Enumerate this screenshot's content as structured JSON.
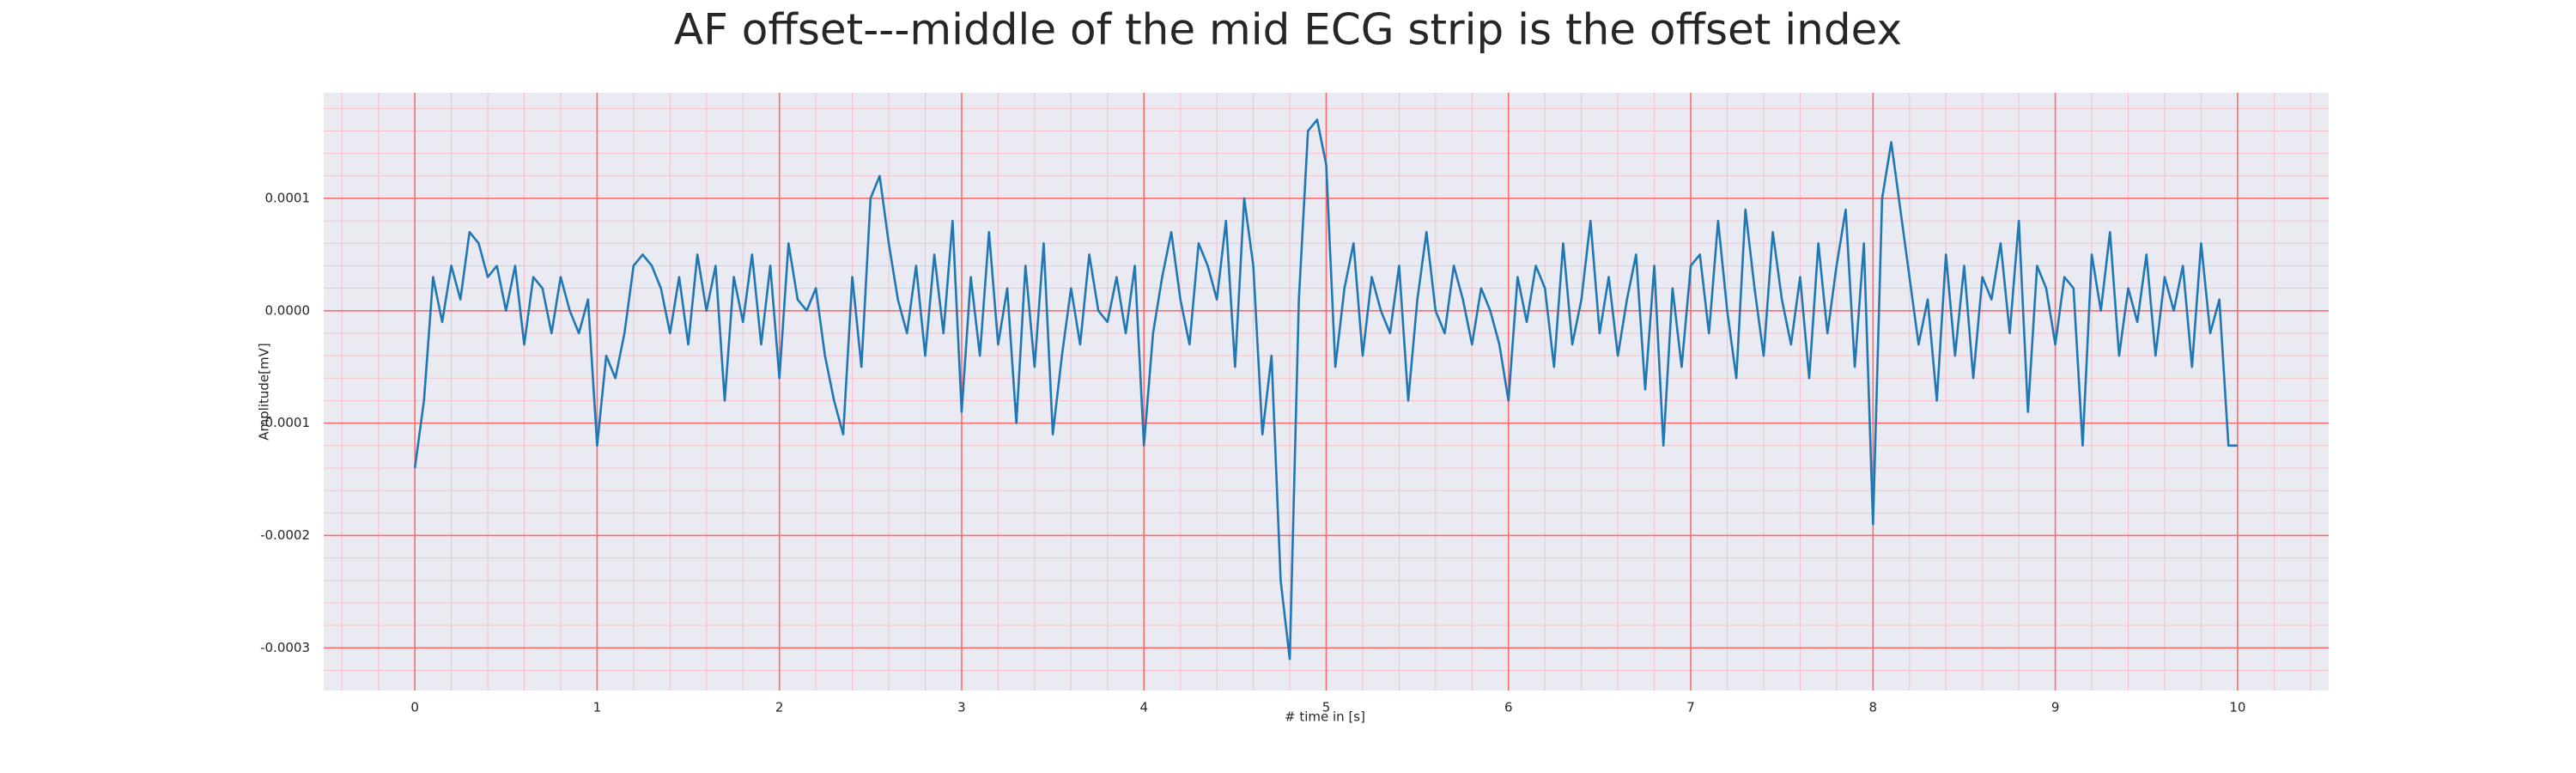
{
  "chart_data": {
    "type": "line",
    "title": "AF offset---middle of the mid ECG strip is the offset index",
    "xlabel": "# time in [s]",
    "ylabel": "Amplitude[mV]",
    "x": [
      0,
      0.05,
      0.1,
      0.15,
      0.2,
      0.25,
      0.3,
      0.35,
      0.4,
      0.45,
      0.5,
      0.55,
      0.6,
      0.65,
      0.7,
      0.75,
      0.8,
      0.85,
      0.9,
      0.95,
      1,
      1.05,
      1.1,
      1.15,
      1.2,
      1.25,
      1.3,
      1.35,
      1.4,
      1.45,
      1.5,
      1.55,
      1.6,
      1.65,
      1.7,
      1.75,
      1.8,
      1.85,
      1.9,
      1.95,
      2,
      2.05,
      2.1,
      2.15,
      2.2,
      2.25,
      2.3,
      2.35,
      2.4,
      2.45,
      2.5,
      2.55,
      2.6,
      2.65,
      2.7,
      2.75,
      2.8,
      2.85,
      2.9,
      2.95,
      3,
      3.05,
      3.1,
      3.15,
      3.2,
      3.25,
      3.3,
      3.35,
      3.4,
      3.45,
      3.5,
      3.55,
      3.6,
      3.65,
      3.7,
      3.75,
      3.8,
      3.85,
      3.9,
      3.95,
      4,
      4.05,
      4.1,
      4.15,
      4.2,
      4.25,
      4.3,
      4.35,
      4.4,
      4.45,
      4.5,
      4.55,
      4.6,
      4.65,
      4.7,
      4.75,
      4.8,
      4.85,
      4.9,
      4.95,
      5,
      5.05,
      5.1,
      5.15,
      5.2,
      5.25,
      5.3,
      5.35,
      5.4,
      5.45,
      5.5,
      5.55,
      5.6,
      5.65,
      5.7,
      5.75,
      5.8,
      5.85,
      5.9,
      5.95,
      6,
      6.05,
      6.1,
      6.15,
      6.2,
      6.25,
      6.3,
      6.35,
      6.4,
      6.45,
      6.5,
      6.55,
      6.6,
      6.65,
      6.7,
      6.75,
      6.8,
      6.85,
      6.9,
      6.95,
      7,
      7.05,
      7.1,
      7.15,
      7.2,
      7.25,
      7.3,
      7.35,
      7.4,
      7.45,
      7.5,
      7.55,
      7.6,
      7.65,
      7.7,
      7.75,
      7.8,
      7.85,
      7.9,
      7.95,
      8,
      8.05,
      8.1,
      8.15,
      8.2,
      8.25,
      8.3,
      8.35,
      8.4,
      8.45,
      8.5,
      8.55,
      8.6,
      8.65,
      8.7,
      8.75,
      8.8,
      8.85,
      8.9,
      8.95,
      9,
      9.05,
      9.1,
      9.15,
      9.2,
      9.25,
      9.3,
      9.35,
      9.4,
      9.45,
      9.5,
      9.55,
      9.6,
      9.65,
      9.7,
      9.75,
      9.8,
      9.85,
      9.9,
      9.95,
      10
    ],
    "series": [
      {
        "color": "#1f77b4",
        "values": [
          -0.00014,
          -8e-05,
          3e-05,
          -1e-05,
          4e-05,
          1e-05,
          7e-05,
          6e-05,
          3e-05,
          4e-05,
          0,
          4e-05,
          -3e-05,
          3e-05,
          2e-05,
          -2e-05,
          3e-05,
          0,
          -2e-05,
          1e-05,
          -0.00012,
          -4e-05,
          -6e-05,
          -2e-05,
          4e-05,
          5e-05,
          4e-05,
          2e-05,
          -2e-05,
          3e-05,
          -3e-05,
          5e-05,
          0,
          4e-05,
          -8e-05,
          3e-05,
          -1e-05,
          5e-05,
          -3e-05,
          4e-05,
          -6e-05,
          6e-05,
          1e-05,
          0,
          2e-05,
          -4e-05,
          -8e-05,
          -0.00011,
          3e-05,
          -5e-05,
          0.0001,
          0.00012,
          6e-05,
          1e-05,
          -2e-05,
          4e-05,
          -4e-05,
          5e-05,
          -2e-05,
          8e-05,
          -9e-05,
          3e-05,
          -4e-05,
          7e-05,
          -3e-05,
          2e-05,
          -0.0001,
          4e-05,
          -5e-05,
          6e-05,
          -0.00011,
          -4e-05,
          2e-05,
          -3e-05,
          5e-05,
          0,
          -1e-05,
          3e-05,
          -2e-05,
          4e-05,
          -0.00012,
          -2e-05,
          3e-05,
          7e-05,
          1e-05,
          -3e-05,
          6e-05,
          4e-05,
          1e-05,
          8e-05,
          -5e-05,
          0.0001,
          4e-05,
          -0.00011,
          -4e-05,
          -0.00024,
          -0.00031,
          1e-05,
          0.00016,
          0.00017,
          0.00013,
          -5e-05,
          2e-05,
          6e-05,
          -4e-05,
          3e-05,
          0,
          -2e-05,
          4e-05,
          -8e-05,
          1e-05,
          7e-05,
          0,
          -2e-05,
          4e-05,
          1e-05,
          -3e-05,
          2e-05,
          0,
          -3e-05,
          -8e-05,
          3e-05,
          -1e-05,
          4e-05,
          2e-05,
          -5e-05,
          6e-05,
          -3e-05,
          1e-05,
          8e-05,
          -2e-05,
          3e-05,
          -4e-05,
          1e-05,
          5e-05,
          -7e-05,
          4e-05,
          -0.00012,
          2e-05,
          -5e-05,
          4e-05,
          5e-05,
          -2e-05,
          8e-05,
          0,
          -6e-05,
          9e-05,
          2e-05,
          -4e-05,
          7e-05,
          1e-05,
          -3e-05,
          3e-05,
          -6e-05,
          6e-05,
          -2e-05,
          4e-05,
          9e-05,
          -5e-05,
          6e-05,
          -0.00019,
          0.0001,
          0.00015,
          9e-05,
          3e-05,
          -3e-05,
          1e-05,
          -8e-05,
          5e-05,
          -4e-05,
          4e-05,
          -6e-05,
          3e-05,
          1e-05,
          6e-05,
          -2e-05,
          8e-05,
          -9e-05,
          4e-05,
          2e-05,
          -3e-05,
          3e-05,
          2e-05,
          -0.00012,
          5e-05,
          0,
          7e-05,
          -4e-05,
          2e-05,
          -1e-05,
          5e-05,
          -4e-05,
          3e-05,
          0,
          4e-05,
          -5e-05,
          6e-05,
          -2e-05,
          1e-05,
          -0.00012,
          -0.00012
        ]
      }
    ],
    "xlim": [
      -0.5,
      10.5
    ],
    "xticks": [
      0,
      1,
      2,
      3,
      4,
      5,
      6,
      7,
      8,
      9,
      10
    ],
    "ylim": [
      -0.000338,
      0.000194
    ],
    "yticks": [
      -0.0003,
      -0.0002,
      -0.0001,
      {
        "value": 0,
        "label": "0.0000"
      },
      0.0001
    ],
    "grid": true,
    "grid_color": "#ff6b6b",
    "minor_grid": true,
    "minor_grid_color": "#f5c2cb",
    "background": "#eaeaf2"
  }
}
